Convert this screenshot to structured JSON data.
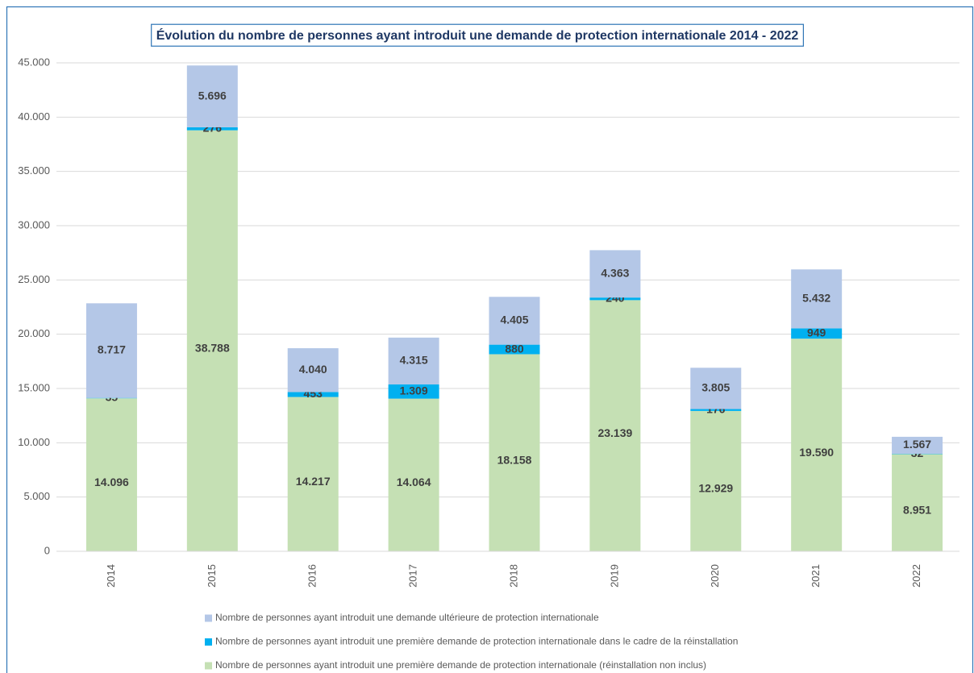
{
  "chart_data": {
    "type": "stacked-bar",
    "title": "Évolution du nombre de personnes ayant introduit une demande de protection internationale 2014 - 2022",
    "categories": [
      "2014",
      "2015",
      "2016",
      "2017",
      "2018",
      "2019",
      "2020",
      "2021",
      "2022"
    ],
    "series": [
      {
        "name": "Nombre de personnes ayant introduit une première demande de protection internationale (réinstallation non inclus)",
        "color": "#c5e0b4",
        "values": [
          14096,
          38788,
          14217,
          14064,
          18158,
          23139,
          12929,
          19590,
          8951
        ],
        "value_labels": [
          "14.096",
          "38.788",
          "14.217",
          "14.064",
          "18.158",
          "23.139",
          "12.929",
          "19.590",
          "8.951"
        ]
      },
      {
        "name": "Nombre de personnes ayant introduit une première demande de protection internationale dans le cadre de la réinstallation",
        "color": "#00b0f0",
        "values": [
          35,
          276,
          453,
          1309,
          880,
          240,
          176,
          949,
          32
        ],
        "value_labels": [
          "35",
          "276",
          "453",
          "1.309",
          "880",
          "240",
          "176",
          "949",
          "32"
        ]
      },
      {
        "name": "Nombre de personnes ayant introduit une demande ultérieure de protection internationale",
        "color": "#b4c7e7",
        "values": [
          8717,
          5696,
          4040,
          4315,
          4405,
          4363,
          3805,
          5432,
          1567
        ],
        "value_labels": [
          "8.717",
          "5.696",
          "4.040",
          "4.315",
          "4.405",
          "4.363",
          "3.805",
          "5.432",
          "1.567"
        ]
      }
    ],
    "ylim": [
      0,
      45000
    ],
    "yticks": [
      0,
      {
        "value": 5000,
        "label": "5.000"
      },
      {
        "value": 10000,
        "label": "10.000"
      },
      {
        "value": 15000,
        "label": "15.000"
      },
      {
        "value": 20000,
        "label": "20.000"
      },
      {
        "value": 25000,
        "label": "25.000"
      },
      {
        "value": 30000,
        "label": "30.000"
      },
      {
        "value": 35000,
        "label": "35.000"
      },
      {
        "value": 40000,
        "label": "40.000"
      },
      {
        "value": 45000,
        "label": "45.000"
      }
    ],
    "grid": true
  }
}
